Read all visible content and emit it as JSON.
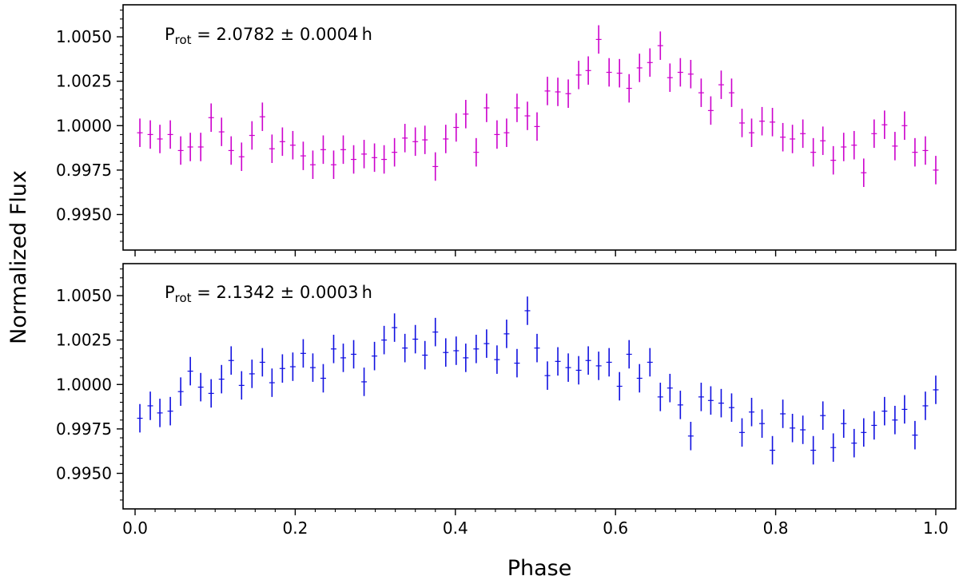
{
  "figure": {
    "xlabel": "Phase",
    "ylabel": "Normalized Flux"
  },
  "chart_data": [
    {
      "type": "scatter",
      "panel": "top",
      "color": "#cc00cc",
      "annotation": {
        "prefix": "P",
        "subscript": "rot",
        "text": " = 2.0782 ± 0.0004 h"
      },
      "xlim": [
        -0.015,
        1.025
      ],
      "ylim": [
        0.993,
        1.0068
      ],
      "x_ticks": [
        0.0,
        0.2,
        0.4,
        0.6,
        0.8,
        1.0
      ],
      "y_ticks": [
        0.995,
        0.9975,
        1.0,
        1.0025,
        1.005
      ],
      "y_tick_labels": [
        "0.9950",
        "0.9975",
        "1.0000",
        "1.0025",
        "1.0050"
      ],
      "error": 0.0008,
      "x": [
        0.006,
        0.019,
        0.031,
        0.044,
        0.057,
        0.069,
        0.082,
        0.095,
        0.108,
        0.12,
        0.133,
        0.146,
        0.159,
        0.171,
        0.184,
        0.197,
        0.21,
        0.222,
        0.235,
        0.248,
        0.26,
        0.273,
        0.286,
        0.299,
        0.311,
        0.324,
        0.337,
        0.35,
        0.362,
        0.375,
        0.388,
        0.401,
        0.413,
        0.426,
        0.439,
        0.452,
        0.464,
        0.477,
        0.49,
        0.502,
        0.515,
        0.528,
        0.541,
        0.554,
        0.566,
        0.579,
        0.592,
        0.605,
        0.617,
        0.63,
        0.643,
        0.656,
        0.668,
        0.681,
        0.694,
        0.707,
        0.719,
        0.732,
        0.745,
        0.758,
        0.77,
        0.783,
        0.796,
        0.809,
        0.821,
        0.834,
        0.847,
        0.859,
        0.872,
        0.885,
        0.898,
        0.91,
        0.923,
        0.936,
        0.949,
        0.961,
        0.974,
        0.987,
        1.0
      ],
      "y": [
        0.9996,
        0.9995,
        0.99925,
        0.9995,
        0.9986,
        0.9988,
        0.9988,
        1.00045,
        0.99965,
        0.9986,
        0.99825,
        0.99945,
        1.0005,
        0.9987,
        0.9991,
        0.9989,
        0.9983,
        0.9978,
        0.99865,
        0.9978,
        0.99865,
        0.9981,
        0.9984,
        0.9982,
        0.9981,
        0.9985,
        0.9993,
        0.9991,
        0.9992,
        0.9977,
        0.99925,
        0.9999,
        1.00065,
        0.9985,
        1.001,
        0.9995,
        0.9996,
        1.001,
        1.00055,
        0.99995,
        1.00195,
        1.0019,
        1.0018,
        1.00285,
        1.0031,
        1.00485,
        1.003,
        1.00295,
        1.0021,
        1.00325,
        1.00355,
        1.0045,
        1.0027,
        1.003,
        1.0029,
        1.00185,
        1.00085,
        1.0023,
        1.00185,
        1.00015,
        0.9996,
        1.00025,
        1.0002,
        0.99935,
        0.99925,
        0.99955,
        0.9985,
        0.99915,
        0.99805,
        0.9988,
        0.9989,
        0.99735,
        0.99955,
        1.00005,
        0.99885,
        1.0,
        0.9985,
        0.9986,
        0.9975
      ]
    },
    {
      "type": "scatter",
      "panel": "bottom",
      "color": "#1010e0",
      "annotation": {
        "prefix": "P",
        "subscript": "rot",
        "text": " = 2.1342 ± 0.0003 h"
      },
      "xlim": [
        -0.015,
        1.025
      ],
      "ylim": [
        0.993,
        1.0068
      ],
      "x_ticks": [
        0.0,
        0.2,
        0.4,
        0.6,
        0.8,
        1.0
      ],
      "x_tick_labels": [
        "0.0",
        "0.2",
        "0.4",
        "0.6",
        "0.8",
        "1.0"
      ],
      "y_ticks": [
        0.995,
        0.9975,
        1.0,
        1.0025,
        1.005
      ],
      "y_tick_labels": [
        "0.9950",
        "0.9975",
        "1.0000",
        "1.0025",
        "1.0050"
      ],
      "error": 0.0008,
      "x": [
        0.006,
        0.019,
        0.031,
        0.044,
        0.057,
        0.069,
        0.082,
        0.095,
        0.108,
        0.12,
        0.133,
        0.146,
        0.159,
        0.171,
        0.184,
        0.197,
        0.21,
        0.222,
        0.235,
        0.248,
        0.26,
        0.273,
        0.286,
        0.299,
        0.311,
        0.324,
        0.337,
        0.35,
        0.362,
        0.375,
        0.388,
        0.401,
        0.413,
        0.426,
        0.439,
        0.452,
        0.464,
        0.477,
        0.49,
        0.502,
        0.515,
        0.528,
        0.541,
        0.554,
        0.566,
        0.579,
        0.592,
        0.605,
        0.617,
        0.63,
        0.643,
        0.656,
        0.668,
        0.681,
        0.694,
        0.707,
        0.719,
        0.732,
        0.745,
        0.758,
        0.77,
        0.783,
        0.796,
        0.809,
        0.821,
        0.834,
        0.847,
        0.859,
        0.872,
        0.885,
        0.898,
        0.91,
        0.923,
        0.936,
        0.949,
        0.961,
        0.974,
        0.987,
        1.0
      ],
      "y": [
        0.9981,
        0.9988,
        0.9984,
        0.9985,
        0.9996,
        1.00075,
        0.99985,
        0.9995,
        1.0003,
        1.00135,
        0.99995,
        1.0006,
        1.00125,
        1.0001,
        1.0009,
        1.001,
        1.00175,
        1.00095,
        1.00035,
        1.002,
        1.0015,
        1.0017,
        1.00015,
        1.0016,
        1.0025,
        1.0032,
        1.00205,
        1.00255,
        1.00165,
        1.00295,
        1.0018,
        1.0019,
        1.0015,
        1.002,
        1.0023,
        1.0014,
        1.00285,
        1.0012,
        1.00415,
        1.00205,
        1.0005,
        1.0013,
        1.00095,
        1.0008,
        1.00135,
        1.00105,
        1.00125,
        0.9999,
        1.0017,
        1.00035,
        1.00125,
        0.9993,
        0.9998,
        0.99885,
        0.9971,
        0.9993,
        0.9991,
        0.99895,
        0.9987,
        0.9973,
        0.99845,
        0.9978,
        0.9963,
        0.99835,
        0.99755,
        0.99745,
        0.9963,
        0.99825,
        0.99645,
        0.9978,
        0.9967,
        0.9973,
        0.9977,
        0.9985,
        0.998,
        0.9986,
        0.99715,
        0.9988,
        0.9997
      ]
    }
  ]
}
